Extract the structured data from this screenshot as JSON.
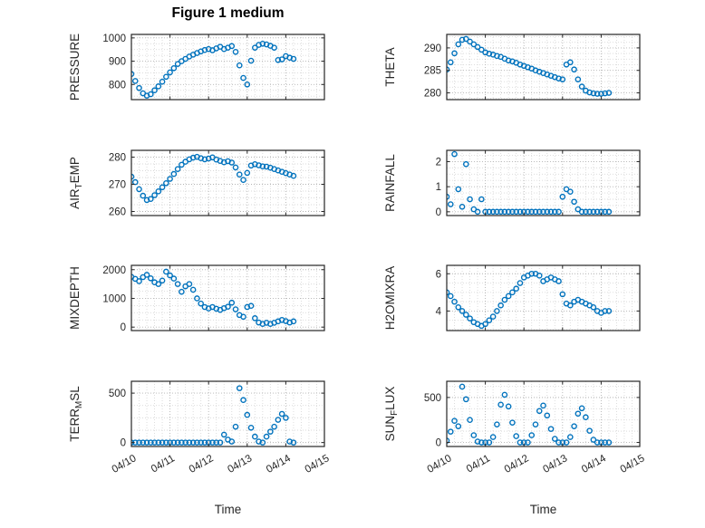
{
  "chart_data": {
    "type": "scatter",
    "title": "Figure 1 medium",
    "xlabel": "Time",
    "marker": {
      "shape": "open-circle",
      "color": "#0072BD",
      "size": 5
    },
    "grid": "major and minor dotted gridlines on",
    "layout": "4 rows x 2 columns of subplots, shared time axis",
    "xlim": [
      0,
      5
    ],
    "x_ticks": [
      0,
      1,
      2,
      3,
      4,
      5
    ],
    "x_tick_labels": [
      "04/10",
      "04/11",
      "04/12",
      "04/13",
      "04/14",
      "04/15"
    ],
    "x_tick_rotation": 30,
    "x": [
      0,
      0.1,
      0.2,
      0.3,
      0.4,
      0.5,
      0.6,
      0.7,
      0.8,
      0.9,
      1,
      1.1,
      1.2,
      1.3,
      1.4,
      1.5,
      1.6,
      1.7,
      1.8,
      1.9,
      2,
      2.1,
      2.2,
      2.3,
      2.4,
      2.5,
      2.6,
      2.7,
      2.8,
      2.9,
      3,
      3.1,
      3.2,
      3.3,
      3.4,
      3.5,
      3.6,
      3.7,
      3.8,
      3.9,
      4,
      4.1,
      4.2
    ],
    "subplots": [
      {
        "ylabel": "PRESSURE",
        "row": 0,
        "col": 0,
        "ylim": [
          735,
          1015
        ],
        "yticks": [
          800,
          900,
          1000
        ],
        "values": [
          845,
          815,
          785,
          762,
          752,
          758,
          775,
          792,
          812,
          833,
          852,
          870,
          888,
          900,
          910,
          920,
          928,
          935,
          942,
          948,
          952,
          947,
          955,
          962,
          952,
          958,
          965,
          940,
          882,
          828,
          800,
          902,
          958,
          970,
          975,
          972,
          966,
          958,
          905,
          908,
          922,
          915,
          910
        ]
      },
      {
        "ylabel": "THETA",
        "row": 0,
        "col": 1,
        "ylim": [
          278.5,
          293
        ],
        "yticks": [
          280,
          285,
          290
        ],
        "values": [
          285.2,
          286.8,
          288.8,
          290.8,
          291.8,
          292,
          291.4,
          290.8,
          290.2,
          289.6,
          289,
          288.7,
          288.5,
          288.2,
          288,
          287.6,
          287.2,
          287,
          286.7,
          286.3,
          286,
          285.7,
          285.4,
          285,
          284.7,
          284.4,
          284.1,
          283.8,
          283.5,
          283.2,
          283,
          286.3,
          286.8,
          285.2,
          283,
          281.4,
          280.5,
          280.1,
          279.9,
          279.8,
          279.8,
          279.9,
          280
        ]
      },
      {
        "ylabel": "AIR_TEMP",
        "row": 1,
        "col": 0,
        "ylim": [
          258.5,
          282.5
        ],
        "yticks": [
          260,
          270,
          280
        ],
        "values": [
          272.8,
          270.8,
          268.2,
          265.8,
          264.2,
          264.6,
          266,
          267.4,
          268.9,
          270.4,
          272,
          273.8,
          275.6,
          277.2,
          278.3,
          279.2,
          279.8,
          280.1,
          279.6,
          279.2,
          279.5,
          279.9,
          279.1,
          278.6,
          278.1,
          278.5,
          278,
          276.2,
          273.6,
          271.6,
          274.2,
          276.9,
          277.4,
          277,
          276.6,
          276.5,
          276.1,
          275.6,
          275.1,
          274.6,
          274.1,
          273.6,
          273.1
        ]
      },
      {
        "ylabel": "RAINFALL",
        "row": 1,
        "col": 1,
        "ylim": [
          -0.15,
          2.45
        ],
        "yticks": [
          0,
          1,
          2
        ],
        "values": [
          0.6,
          0.3,
          2.3,
          0.9,
          0.2,
          1.9,
          0.5,
          0.1,
          0,
          0.5,
          0,
          0,
          0,
          0,
          0,
          0,
          0,
          0,
          0,
          0,
          0,
          0,
          0,
          0,
          0,
          0,
          0,
          0,
          0,
          0,
          0.6,
          0.9,
          0.8,
          0.4,
          0.1,
          0,
          0,
          0,
          0,
          0,
          0,
          0,
          0
        ]
      },
      {
        "ylabel": "MIXDEPTH",
        "row": 2,
        "col": 0,
        "ylim": [
          -120,
          2150
        ],
        "yticks": [
          0,
          1000,
          2000
        ],
        "values": [
          1750,
          1680,
          1600,
          1740,
          1820,
          1700,
          1560,
          1500,
          1620,
          1930,
          1800,
          1690,
          1500,
          1230,
          1420,
          1500,
          1300,
          1000,
          820,
          700,
          650,
          700,
          640,
          600,
          660,
          710,
          850,
          620,
          420,
          360,
          700,
          740,
          310,
          160,
          110,
          150,
          110,
          150,
          200,
          250,
          210,
          160,
          200
        ]
      },
      {
        "ylabel": "H2OMIXRA",
        "row": 2,
        "col": 1,
        "ylim": [
          2.95,
          6.45
        ],
        "yticks": [
          4,
          6
        ],
        "values": [
          5,
          4.8,
          4.5,
          4.2,
          4,
          3.8,
          3.6,
          3.4,
          3.3,
          3.2,
          3.3,
          3.5,
          3.7,
          4,
          4.3,
          4.6,
          4.8,
          5,
          5.2,
          5.5,
          5.8,
          5.9,
          6,
          6,
          5.9,
          5.6,
          5.7,
          5.8,
          5.7,
          5.6,
          4.9,
          4.4,
          4.3,
          4.5,
          4.6,
          4.5,
          4.4,
          4.3,
          4.2,
          4,
          3.9,
          4,
          4
        ]
      },
      {
        "ylabel": "TERR_MSL",
        "row": 3,
        "col": 0,
        "ylim": [
          -40,
          620
        ],
        "yticks": [
          0,
          500
        ],
        "values": [
          0,
          0,
          0,
          0,
          0,
          0,
          0,
          0,
          0,
          0,
          0,
          0,
          0,
          0,
          0,
          0,
          0,
          0,
          0,
          0,
          0,
          0,
          0,
          0,
          80,
          30,
          10,
          160,
          550,
          430,
          280,
          150,
          60,
          10,
          0,
          60,
          110,
          160,
          230,
          290,
          250,
          10,
          0
        ]
      },
      {
        "ylabel": "SUN_FLUX",
        "row": 3,
        "col": 1,
        "ylim": [
          -45,
          680
        ],
        "yticks": [
          0,
          500
        ],
        "values": [
          20,
          120,
          240,
          180,
          620,
          480,
          250,
          80,
          10,
          0,
          0,
          0,
          60,
          200,
          420,
          530,
          400,
          220,
          70,
          0,
          0,
          0,
          80,
          200,
          350,
          410,
          300,
          150,
          40,
          0,
          0,
          0,
          60,
          180,
          320,
          380,
          280,
          130,
          30,
          0,
          0,
          0,
          0
        ]
      }
    ]
  }
}
